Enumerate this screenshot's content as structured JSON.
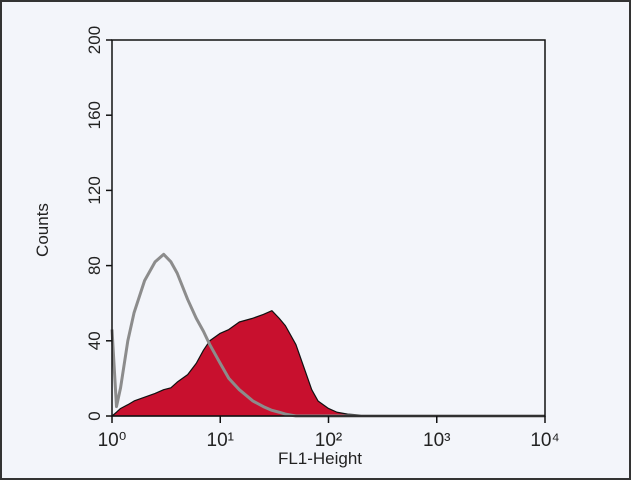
{
  "chart_data": {
    "type": "area",
    "xlabel": "FL1-Height",
    "ylabel": "Counts",
    "xscale": "log",
    "xlim": [
      1,
      10000
    ],
    "xticks": [
      {
        "value": 1,
        "label": "10⁰"
      },
      {
        "value": 10,
        "label": "10¹"
      },
      {
        "value": 100,
        "label": "10²"
      },
      {
        "value": 1000,
        "label": "10³"
      },
      {
        "value": 10000,
        "label": "10⁴"
      }
    ],
    "ylim": [
      0,
      200
    ],
    "yticks": [
      0,
      40,
      80,
      120,
      160,
      200
    ],
    "x": [
      1,
      1.1,
      1.2,
      1.4,
      1.6,
      2,
      2.5,
      3,
      3.5,
      4,
      5,
      6,
      7,
      8,
      10,
      12,
      15,
      20,
      25,
      30,
      35,
      40,
      50,
      60,
      70,
      80,
      100,
      120,
      150,
      200,
      300,
      1000,
      10000
    ],
    "series": [
      {
        "color": "#c8102e",
        "fill": true,
        "values": [
          0,
          2,
          4,
          6,
          8,
          10,
          12,
          14,
          15,
          18,
          22,
          28,
          35,
          40,
          44,
          46,
          50,
          52,
          54,
          56,
          52,
          48,
          38,
          25,
          14,
          8,
          4,
          2,
          1,
          0.5,
          0.3,
          0.3,
          0
        ]
      },
      {
        "color": "#8c8c8c",
        "fill": false,
        "values": [
          46,
          5,
          15,
          40,
          55,
          72,
          82,
          86,
          82,
          76,
          62,
          52,
          45,
          38,
          28,
          20,
          14,
          8,
          5,
          3,
          2,
          1,
          0,
          0,
          0,
          0,
          0,
          0,
          0,
          0,
          0,
          0,
          0
        ]
      }
    ]
  }
}
